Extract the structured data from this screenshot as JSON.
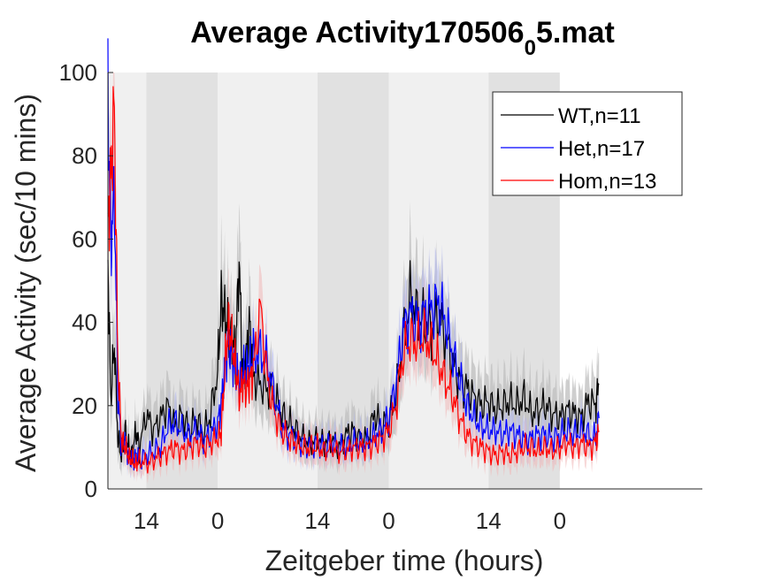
{
  "chart_data": {
    "type": "line",
    "title": {
      "main": "Average Activity170506",
      "subscript": "0",
      "suffix": "5.mat"
    },
    "xlabel": "Zeitgeber time (hours)",
    "ylabel": "Average Activity (sec/10 mins)",
    "ylim": [
      0,
      100
    ],
    "yticks": [
      0,
      20,
      40,
      60,
      80,
      100
    ],
    "xticks": [
      {
        "t": 14,
        "label": "14"
      },
      {
        "t": 24,
        "label": "0"
      },
      {
        "t": 38,
        "label": "14"
      },
      {
        "t": 48,
        "label": "0"
      },
      {
        "t": 62,
        "label": "14"
      },
      {
        "t": 72,
        "label": "0"
      }
    ],
    "xlim": [
      8.6,
      92
    ],
    "data_end": 77.5,
    "shading": {
      "light_color": "#f0f0f0",
      "dark_color": "#e1e1e1",
      "light": [
        [
          8.6,
          14
        ],
        [
          24,
          38
        ],
        [
          48,
          62
        ]
      ],
      "dark": [
        [
          14,
          24
        ],
        [
          38,
          48
        ],
        [
          62,
          72
        ]
      ]
    },
    "legend_position": "top-right",
    "legend": [
      {
        "label": "WT,n=11",
        "color": "#000000"
      },
      {
        "label": "Het,n=17",
        "color": "#0000ff"
      },
      {
        "label": "Hom,n=13",
        "color": "#ff0000"
      }
    ],
    "series": [
      {
        "name": "WT,n=11",
        "color": "#000000",
        "band_color": "#bdbdbd",
        "x": [
          8.6,
          9,
          9.5,
          10,
          10.5,
          11,
          11.5,
          12,
          12.5,
          13,
          14,
          15,
          16,
          17,
          18,
          19,
          20,
          21,
          22,
          23,
          24,
          24.5,
          25,
          25.5,
          26,
          26.5,
          27,
          27.5,
          28,
          28.5,
          29,
          30,
          31,
          32,
          33,
          34,
          35,
          36,
          37,
          38,
          39,
          40,
          41,
          42,
          43,
          44,
          45,
          46,
          47,
          48,
          49,
          50,
          51,
          52,
          53,
          54,
          55,
          56,
          57,
          58,
          59,
          60,
          61,
          62,
          63,
          64,
          65,
          66,
          67,
          68,
          69,
          70,
          71,
          72,
          73,
          74,
          75,
          76,
          77,
          77.5
        ],
        "y": [
          55,
          22,
          35,
          12,
          8,
          14,
          10,
          8,
          14,
          10,
          18,
          14,
          17,
          20,
          15,
          18,
          14,
          17,
          13,
          18,
          28,
          45,
          42,
          38,
          36,
          32,
          55,
          28,
          32,
          40,
          27,
          25,
          24,
          22,
          18,
          16,
          14,
          12,
          11,
          12,
          11,
          12,
          10,
          13,
          14,
          12,
          12,
          18,
          15,
          16,
          22,
          35,
          46,
          42,
          40,
          38,
          42,
          36,
          30,
          26,
          24,
          22,
          20,
          21,
          19,
          20,
          21,
          20,
          22,
          18,
          19,
          20,
          18,
          17,
          19,
          18,
          17,
          21,
          20,
          25
        ]
      },
      {
        "name": "Het,n=17",
        "color": "#0000ff",
        "band_color": "#b3b8f0",
        "x": [
          8.6,
          9,
          9.5,
          10,
          10.5,
          11,
          11.5,
          12,
          12.5,
          13,
          14,
          15,
          16,
          17,
          18,
          19,
          20,
          21,
          22,
          23,
          24,
          24.5,
          25,
          25.5,
          26,
          26.5,
          27,
          27.5,
          28,
          28.5,
          29,
          30,
          31,
          32,
          33,
          34,
          35,
          36,
          37,
          38,
          39,
          40,
          41,
          42,
          43,
          44,
          45,
          46,
          47,
          48,
          49,
          50,
          51,
          52,
          53,
          54,
          55,
          56,
          57,
          58,
          59,
          60,
          61,
          62,
          63,
          64,
          65,
          66,
          67,
          68,
          69,
          70,
          71,
          72,
          73,
          74,
          75,
          76,
          77,
          77.5
        ],
        "y": [
          95,
          60,
          70,
          22,
          10,
          12,
          8,
          7,
          8,
          7,
          8,
          9,
          10,
          15,
          16,
          14,
          13,
          14,
          12,
          13,
          16,
          20,
          30,
          35,
          32,
          28,
          26,
          28,
          29,
          30,
          32,
          33,
          30,
          22,
          15,
          13,
          12,
          11,
          10,
          11,
          10,
          11,
          10,
          10,
          11,
          11,
          11,
          13,
          14,
          17,
          25,
          38,
          42,
          40,
          42,
          43,
          45,
          40,
          32,
          26,
          20,
          17,
          15,
          14,
          14,
          13,
          14,
          13,
          12,
          12,
          13,
          13,
          12,
          13,
          14,
          13,
          14,
          13,
          12,
          17
        ]
      },
      {
        "name": "Hom,n=13",
        "color": "#ff0000",
        "band_color": "#f0b8b8",
        "x": [
          8.6,
          9,
          9.5,
          10,
          10.5,
          11,
          11.5,
          12,
          12.5,
          13,
          14,
          15,
          16,
          17,
          18,
          19,
          20,
          21,
          22,
          23,
          24,
          24.5,
          25,
          25.5,
          26,
          26.5,
          27,
          27.5,
          28,
          28.5,
          29,
          30,
          31,
          32,
          33,
          34,
          35,
          36,
          37,
          38,
          39,
          40,
          41,
          42,
          43,
          44,
          45,
          46,
          47,
          48,
          49,
          50,
          51,
          52,
          53,
          54,
          55,
          56,
          57,
          58,
          59,
          60,
          61,
          62,
          63,
          64,
          65,
          66,
          67,
          68,
          69,
          70,
          71,
          72,
          73,
          74,
          75,
          76,
          77,
          77.5
        ],
        "y": [
          62,
          75,
          92,
          30,
          12,
          10,
          8,
          7,
          6,
          7,
          6,
          7,
          8,
          9,
          10,
          9,
          10,
          11,
          10,
          11,
          12,
          14,
          28,
          40,
          35,
          30,
          22,
          26,
          24,
          26,
          28,
          44,
          26,
          18,
          14,
          12,
          11,
          10,
          10,
          10,
          9,
          10,
          9,
          9,
          10,
          10,
          10,
          11,
          12,
          14,
          20,
          32,
          36,
          35,
          37,
          34,
          30,
          26,
          22,
          17,
          13,
          11,
          10,
          9,
          8,
          9,
          8,
          9,
          10,
          10,
          9,
          10,
          9,
          10,
          11,
          10,
          11,
          10,
          11,
          14
        ]
      }
    ]
  }
}
